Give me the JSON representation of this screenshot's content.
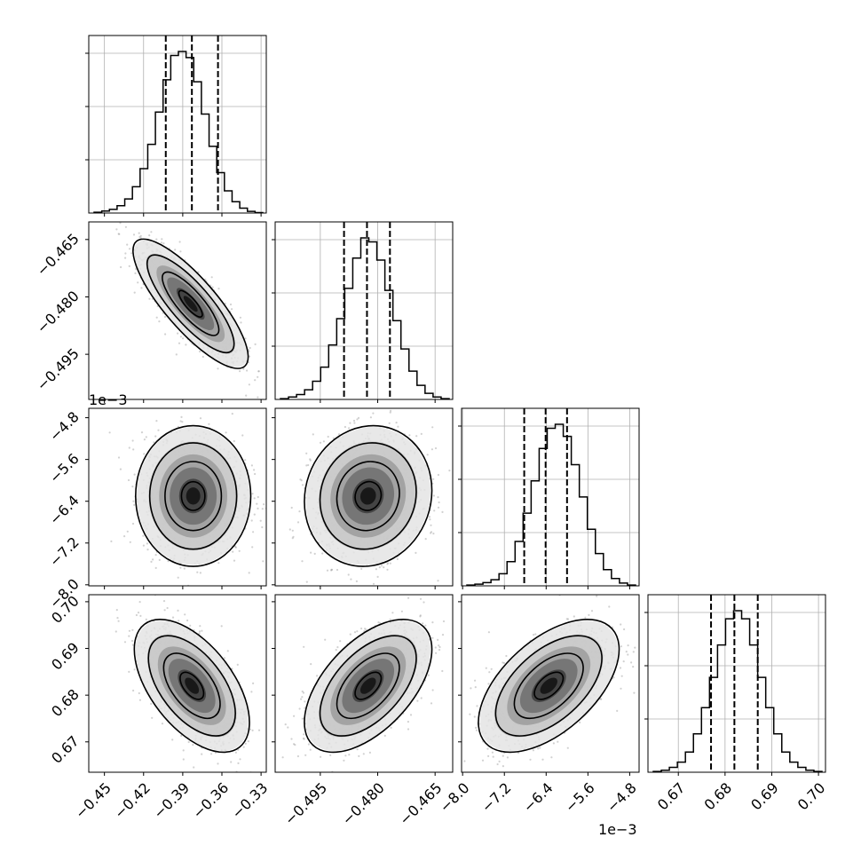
{
  "chart_data": {
    "type": "corner",
    "grid": true,
    "params": [
      {
        "ticks": [
          -0.45,
          -0.42,
          -0.39,
          -0.36,
          -0.33
        ],
        "tick_labels": [
          "−0.45",
          "−0.42",
          "−0.39",
          "−0.36",
          "−0.33"
        ],
        "range": [
          -0.462,
          -0.326
        ],
        "quantiles": [
          -0.403,
          -0.383,
          -0.363
        ],
        "hist_counts": [
          2,
          5,
          9,
          18,
          35,
          65,
          110,
          170,
          250,
          330,
          390,
          400,
          385,
          325,
          245,
          165,
          100,
          55,
          28,
          12,
          4,
          1
        ]
      },
      {
        "ticks": [
          -0.495,
          -0.48,
          -0.465
        ],
        "tick_labels": [
          "−0.495",
          "−0.480",
          "−0.465"
        ],
        "range": [
          -0.5068,
          -0.4604
        ],
        "quantiles": [
          -0.4888,
          -0.4828,
          -0.4768
        ],
        "hist_counts": [
          2,
          6,
          12,
          24,
          45,
          80,
          135,
          200,
          275,
          350,
          400,
          390,
          345,
          270,
          195,
          125,
          70,
          35,
          15,
          6,
          2
        ]
      },
      {
        "ticks": [
          -8.0,
          -7.2,
          -6.4,
          -5.6,
          -4.8
        ],
        "tick_labels": [
          "−8.0",
          "−7.2",
          "−6.4",
          "−5.6",
          "−4.8"
        ],
        "offset": "1e−3",
        "range": [
          -8.02,
          -4.62
        ],
        "quantiles": [
          -6.82,
          -6.41,
          -6.0
        ],
        "hist_counts": [
          2,
          4,
          8,
          15,
          30,
          60,
          110,
          180,
          260,
          340,
          390,
          400,
          370,
          300,
          220,
          140,
          80,
          40,
          18,
          7,
          2
        ]
      },
      {
        "ticks": [
          0.67,
          0.68,
          0.69,
          0.7
        ],
        "tick_labels": [
          "0.67",
          "0.68",
          "0.69",
          "0.70"
        ],
        "range": [
          0.6635,
          0.7015
        ],
        "quantiles": [
          0.677,
          0.682,
          0.687
        ],
        "hist_counts": [
          2,
          5,
          12,
          25,
          50,
          95,
          160,
          235,
          315,
          380,
          400,
          380,
          315,
          235,
          160,
          95,
          50,
          25,
          12,
          5,
          2
        ]
      }
    ],
    "pairs": [
      {
        "row": 1,
        "col": 0,
        "center": [
          -0.384,
          -0.4818
        ],
        "sigma": [
          0.018,
          0.0069
        ],
        "rho": -0.82
      },
      {
        "row": 2,
        "col": 0,
        "center": [
          -0.382,
          -6.3
        ],
        "sigma": [
          0.018,
          0.55
        ],
        "rho": 0.0
      },
      {
        "row": 2,
        "col": 1,
        "center": [
          -0.4825,
          -6.3
        ],
        "sigma": [
          0.0068,
          0.55
        ],
        "rho": 0.08
      },
      {
        "row": 3,
        "col": 0,
        "center": [
          -0.383,
          0.682
        ],
        "sigma": [
          0.018,
          0.0058
        ],
        "rho": -0.55
      },
      {
        "row": 3,
        "col": 1,
        "center": [
          -0.4825,
          0.682
        ],
        "sigma": [
          0.0068,
          0.0058
        ],
        "rho": 0.55
      },
      {
        "row": 3,
        "col": 2,
        "center": [
          -6.35,
          0.682
        ],
        "sigma": [
          0.55,
          0.0058
        ],
        "rho": 0.55
      }
    ]
  }
}
